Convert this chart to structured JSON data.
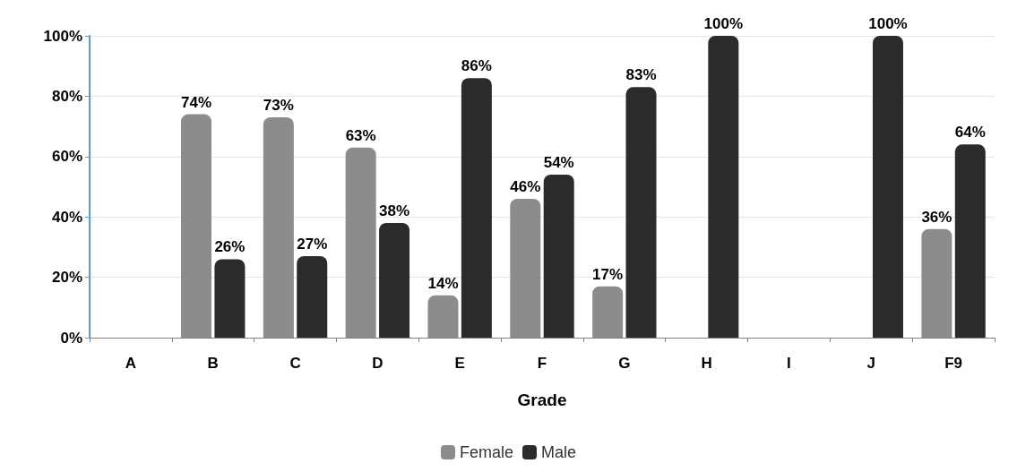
{
  "chart_data": {
    "type": "bar",
    "xlabel": "Grade",
    "categories": [
      "A",
      "B",
      "C",
      "D",
      "E",
      "F",
      "G",
      "H",
      "I",
      "J",
      "F9"
    ],
    "series": [
      {
        "name": "Female",
        "color": "#8c8c8c",
        "values": [
          0,
          74,
          73,
          63,
          14,
          46,
          17,
          0,
          0,
          0,
          36
        ],
        "value_labels": [
          null,
          "74%",
          "73%",
          "63%",
          "14%",
          "46%",
          "17%",
          null,
          null,
          null,
          "36%"
        ]
      },
      {
        "name": "Male",
        "color": "#2b2b2b",
        "values": [
          0,
          26,
          27,
          38,
          86,
          54,
          83,
          100,
          0,
          100,
          64
        ],
        "value_labels": [
          null,
          "26%",
          "27%",
          "38%",
          "86%",
          "54%",
          "83%",
          "100%",
          null,
          "100%",
          "64%"
        ]
      }
    ],
    "ylim": [
      0,
      100
    ],
    "yticks": [
      {
        "value": 0,
        "label": "0%"
      },
      {
        "value": 20,
        "label": "20%"
      },
      {
        "value": 40,
        "label": "40%"
      },
      {
        "value": 60,
        "label": "60%"
      },
      {
        "value": 80,
        "label": "80%"
      },
      {
        "value": 100,
        "label": "100%"
      }
    ],
    "grid": "y",
    "legend": "bottom"
  }
}
